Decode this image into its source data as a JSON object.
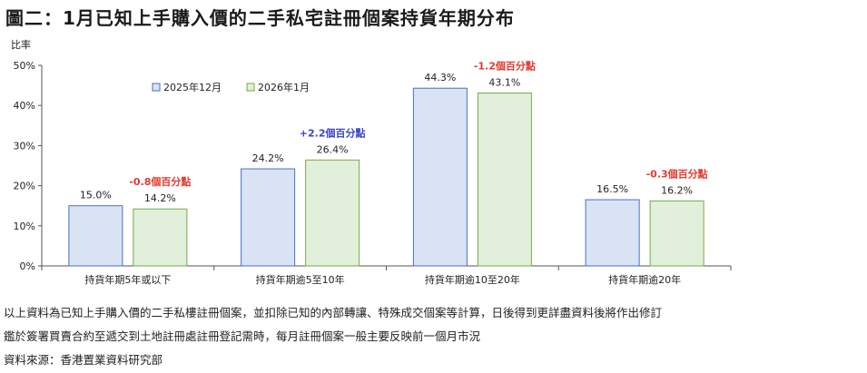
{
  "title": "圖二：1月已知上手購入價的二手私宅註冊個案持貨年期分布",
  "chart_data": {
    "type": "bar",
    "ylabel": "比率",
    "ylim": [
      0,
      50
    ],
    "yticks": [
      "0%",
      "10%",
      "20%",
      "30%",
      "40%",
      "50%"
    ],
    "categories": [
      "持貨年期5年或以下",
      "持貨年期逾5至10年",
      "持貨年期逾10至20年",
      "持貨年期逾20年"
    ],
    "series": [
      {
        "name": "2025年12月",
        "values": [
          15.0,
          24.2,
          44.3,
          16.5
        ],
        "labels": [
          "15.0%",
          "24.2%",
          "44.3%",
          "16.5%"
        ],
        "color": "#dae3f3",
        "stroke": "#4472c4"
      },
      {
        "name": "2026年1月",
        "values": [
          14.2,
          26.4,
          43.1,
          16.2
        ],
        "labels": [
          "14.2%",
          "26.4%",
          "43.1%",
          "16.2%"
        ],
        "color": "#e2efda",
        "stroke": "#70ad47"
      }
    ],
    "annotations": [
      {
        "text": "-0.8個百分點",
        "color": "#e03c31"
      },
      {
        "text": "+2.2個百分點",
        "color": "#3a46c4"
      },
      {
        "text": "-1.2個百分點",
        "color": "#e03c31"
      },
      {
        "text": "-0.3個百分點",
        "color": "#e03c31"
      }
    ],
    "legend_position": "top-left",
    "grid": false
  },
  "notes": [
    "以上資料為已知上手購入價的二手私樓註冊個案，並扣除已知的內部轉讓、特殊成交個案等計算，日後得到更詳盡資料後將作出修訂",
    "鑑於簽署買賣合約至遞交到土地註冊處註冊登記需時，每月註冊個案一般主要反映前一個月市況",
    "資料來源：香港置業資料研究部"
  ]
}
